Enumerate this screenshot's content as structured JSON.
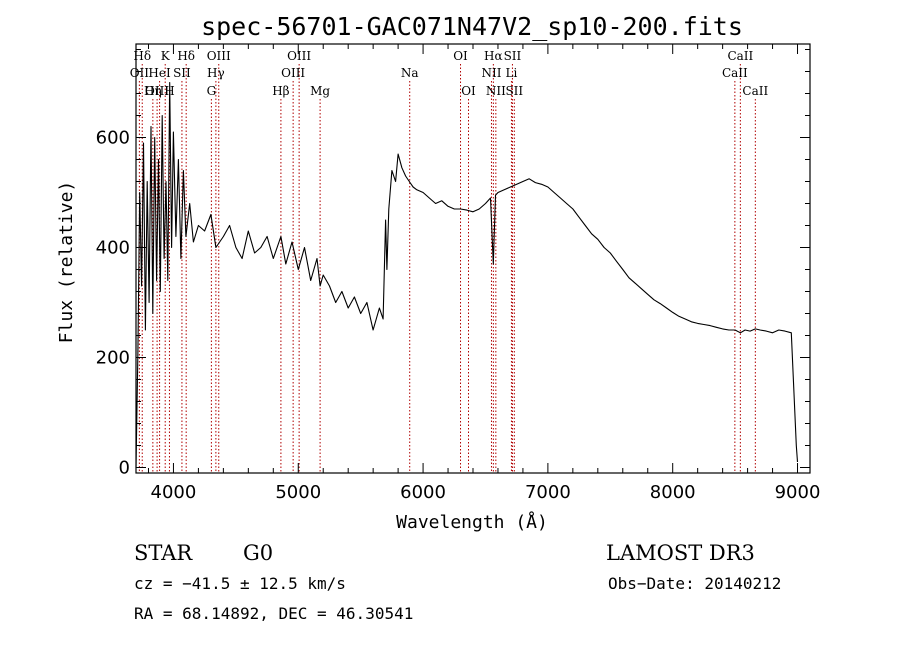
{
  "chart_data": {
    "type": "line",
    "title": "spec-56701-GAC071N47V2_sp10-200.fits",
    "xlabel": "Wavelength (Å)",
    "ylabel": "Flux (relative)",
    "xlim": [
      3700,
      9100
    ],
    "ylim": [
      -10,
      770
    ],
    "xticks": [
      4000,
      5000,
      6000,
      7000,
      8000,
      9000
    ],
    "xtick_labels": [
      "4000",
      "5000",
      "6000",
      "7000",
      "8000",
      "9000"
    ],
    "yticks": [
      0,
      200,
      400,
      600
    ],
    "ytick_labels": [
      "0",
      "200",
      "400",
      "600"
    ],
    "series": [
      {
        "name": "flux",
        "x": [
          3700,
          3715,
          3730,
          3745,
          3760,
          3775,
          3790,
          3805,
          3820,
          3835,
          3850,
          3865,
          3880,
          3895,
          3910,
          3925,
          3940,
          3955,
          3970,
          3985,
          4000,
          4020,
          4040,
          4060,
          4080,
          4100,
          4130,
          4160,
          4200,
          4250,
          4300,
          4340,
          4400,
          4450,
          4500,
          4550,
          4600,
          4650,
          4700,
          4750,
          4800,
          4861,
          4900,
          4950,
          5000,
          5050,
          5100,
          5150,
          5175,
          5200,
          5250,
          5300,
          5350,
          5400,
          5450,
          5500,
          5550,
          5600,
          5650,
          5680,
          5700,
          5710,
          5725,
          5750,
          5780,
          5800,
          5830,
          5860,
          5890,
          5920,
          5950,
          6000,
          6050,
          6100,
          6150,
          6200,
          6250,
          6300,
          6350,
          6400,
          6450,
          6500,
          6540,
          6563,
          6580,
          6600,
          6650,
          6700,
          6750,
          6800,
          6850,
          6900,
          6950,
          7000,
          7050,
          7100,
          7150,
          7200,
          7250,
          7300,
          7350,
          7400,
          7450,
          7500,
          7550,
          7600,
          7650,
          7700,
          7750,
          7800,
          7850,
          7900,
          7950,
          8000,
          8050,
          8100,
          8150,
          8200,
          8250,
          8300,
          8350,
          8400,
          8450,
          8500,
          8542,
          8580,
          8620,
          8662,
          8700,
          8750,
          8800,
          8850,
          8900,
          8950,
          8990,
          9000
        ],
        "values": [
          0,
          210,
          500,
          330,
          590,
          250,
          520,
          300,
          620,
          280,
          600,
          340,
          560,
          320,
          640,
          380,
          520,
          340,
          700,
          400,
          610,
          420,
          560,
          380,
          540,
          420,
          480,
          410,
          440,
          430,
          460,
          400,
          420,
          440,
          400,
          380,
          430,
          390,
          400,
          420,
          380,
          420,
          370,
          410,
          360,
          400,
          340,
          380,
          330,
          350,
          330,
          300,
          320,
          290,
          310,
          280,
          300,
          250,
          290,
          270,
          450,
          360,
          470,
          540,
          520,
          570,
          545,
          530,
          520,
          510,
          505,
          500,
          490,
          480,
          485,
          475,
          470,
          470,
          468,
          465,
          470,
          480,
          490,
          370,
          495,
          500,
          505,
          510,
          515,
          520,
          525,
          518,
          515,
          510,
          500,
          490,
          480,
          470,
          455,
          440,
          425,
          415,
          400,
          390,
          375,
          360,
          345,
          335,
          325,
          315,
          305,
          298,
          290,
          282,
          275,
          270,
          265,
          262,
          260,
          258,
          255,
          252,
          250,
          250,
          245,
          250,
          248,
          252,
          250,
          248,
          245,
          250,
          248,
          245,
          40,
          10
        ]
      }
    ],
    "spectral_lines": [
      {
        "label": "Hδ",
        "x": 3750,
        "row": 0
      },
      {
        "label": "K",
        "x": 3934,
        "row": 0
      },
      {
        "label": "Hδ",
        "x": 4102,
        "row": 0
      },
      {
        "label": "OII",
        "x": 3727,
        "row": 1
      },
      {
        "label": "HeI",
        "x": 3889,
        "row": 1
      },
      {
        "label": "SII",
        "x": 4068,
        "row": 1
      },
      {
        "label": "OIII",
        "x": 3869,
        "row": 2
      },
      {
        "label": "Hη",
        "x": 3835,
        "row": 2
      },
      {
        "label": "H",
        "x": 3968,
        "row": 2
      },
      {
        "label": "OIII",
        "x": 4363,
        "row": 0
      },
      {
        "label": "Hγ",
        "x": 4340,
        "row": 1
      },
      {
        "label": "G",
        "x": 4304,
        "row": 2
      },
      {
        "label": "OIII",
        "x": 5007,
        "row": 0
      },
      {
        "label": "OIII",
        "x": 4959,
        "row": 1
      },
      {
        "label": "Hβ",
        "x": 4861,
        "row": 2
      },
      {
        "label": "Mg",
        "x": 5175,
        "row": 2
      },
      {
        "label": "Na",
        "x": 5893,
        "row": 1
      },
      {
        "label": "OI",
        "x": 6300,
        "row": 0
      },
      {
        "label": "OI",
        "x": 6364,
        "row": 2
      },
      {
        "label": "Hα",
        "x": 6563,
        "row": 0
      },
      {
        "label": "SII",
        "x": 6716,
        "row": 0
      },
      {
        "label": "NII",
        "x": 6548,
        "row": 1
      },
      {
        "label": "Li",
        "x": 6708,
        "row": 1
      },
      {
        "label": "NII",
        "x": 6583,
        "row": 2
      },
      {
        "label": "SII",
        "x": 6731,
        "row": 2
      },
      {
        "label": "CaII",
        "x": 8542,
        "row": 0
      },
      {
        "label": "CaII",
        "x": 8498,
        "row": 1
      },
      {
        "label": "CaII",
        "x": 8662,
        "row": 2
      }
    ]
  },
  "info": {
    "class": "STAR",
    "subclass": "G0",
    "survey": "LAMOST DR3",
    "cz": "cz = −41.5 ± 12.5 km/s",
    "obs_date": "Obs−Date: 20140212",
    "coords": "RA =  68.14892, DEC =  46.30541"
  }
}
